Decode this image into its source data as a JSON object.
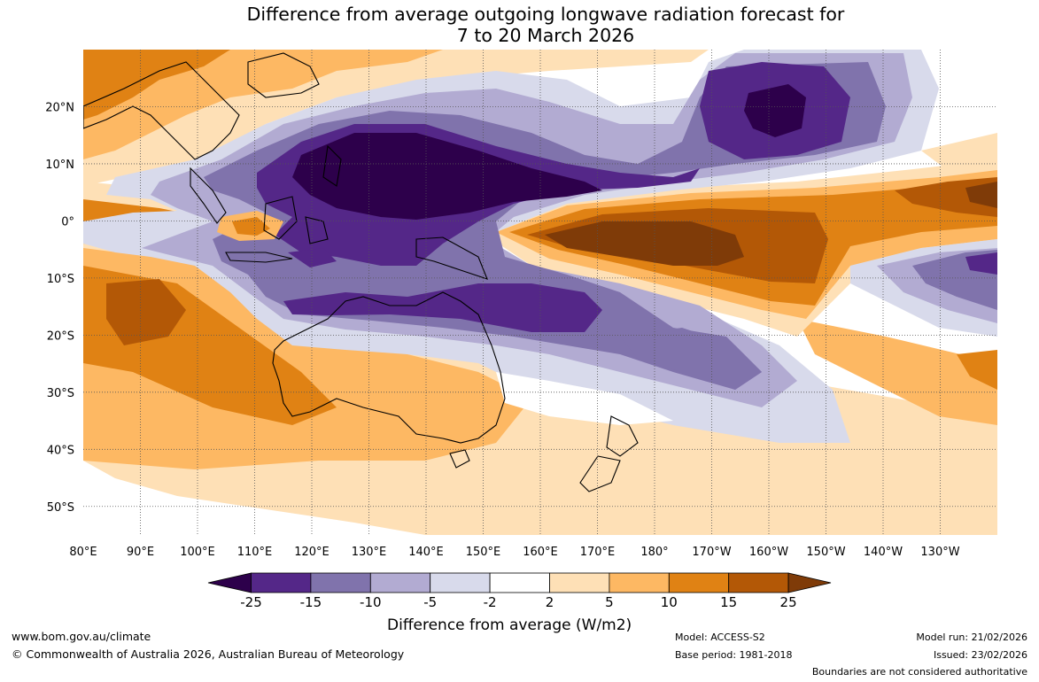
{
  "title": {
    "line1": "Difference from average outgoing longwave radiation forecast for",
    "line2": "7 to 20 March 2026"
  },
  "map": {
    "x_ticks": [
      {
        "lon": 80,
        "label": "80°E"
      },
      {
        "lon": 90,
        "label": "90°E"
      },
      {
        "lon": 100,
        "label": "100°E"
      },
      {
        "lon": 110,
        "label": "110°E"
      },
      {
        "lon": 120,
        "label": "120°E"
      },
      {
        "lon": 130,
        "label": "130°E"
      },
      {
        "lon": 140,
        "label": "140°E"
      },
      {
        "lon": 150,
        "label": "150°E"
      },
      {
        "lon": 160,
        "label": "160°E"
      },
      {
        "lon": 170,
        "label": "170°E"
      },
      {
        "lon": 180,
        "label": "180°"
      },
      {
        "lon": 190,
        "label": "170°W"
      },
      {
        "lon": 200,
        "label": "160°W"
      },
      {
        "lon": 210,
        "label": "150°W"
      },
      {
        "lon": 220,
        "label": "140°W"
      },
      {
        "lon": 230,
        "label": "130°W"
      }
    ],
    "y_ticks": [
      {
        "lat": 20,
        "label": "20°N"
      },
      {
        "lat": 10,
        "label": "10°N"
      },
      {
        "lat": 0,
        "label": "0°"
      },
      {
        "lat": -10,
        "label": "10°S"
      },
      {
        "lat": -20,
        "label": "20°S"
      },
      {
        "lat": -30,
        "label": "30°S"
      },
      {
        "lat": -40,
        "label": "40°S"
      },
      {
        "lat": -50,
        "label": "50°S"
      }
    ],
    "extent": {
      "lon_min": 80,
      "lon_max": 240,
      "lat_min": -55,
      "lat_max": 30
    }
  },
  "colorbar": {
    "colors": [
      "#2d004b",
      "#542788",
      "#8073ac",
      "#b2abd2",
      "#d8daeb",
      "#ffffff",
      "#fee0b6",
      "#fdb863",
      "#e08214",
      "#b35806",
      "#7f3b08"
    ],
    "labels": [
      "-25",
      "-15",
      "-10",
      "-5",
      "-2",
      "2",
      "5",
      "10",
      "15",
      "25"
    ],
    "title": "Difference from average (W/m2)"
  },
  "footer": {
    "url": "www.bom.gov.au/climate",
    "copyright": "© Commonwealth of Australia 2026, Australian Bureau of Meteorology",
    "model": "Model: ACCESS-S2",
    "base_period": "Base period: 1981-2018",
    "model_run": "Model run: 21/02/2026",
    "issued": "Issued: 23/02/2026",
    "disclaimer": "Boundaries are not considered authoritative"
  }
}
